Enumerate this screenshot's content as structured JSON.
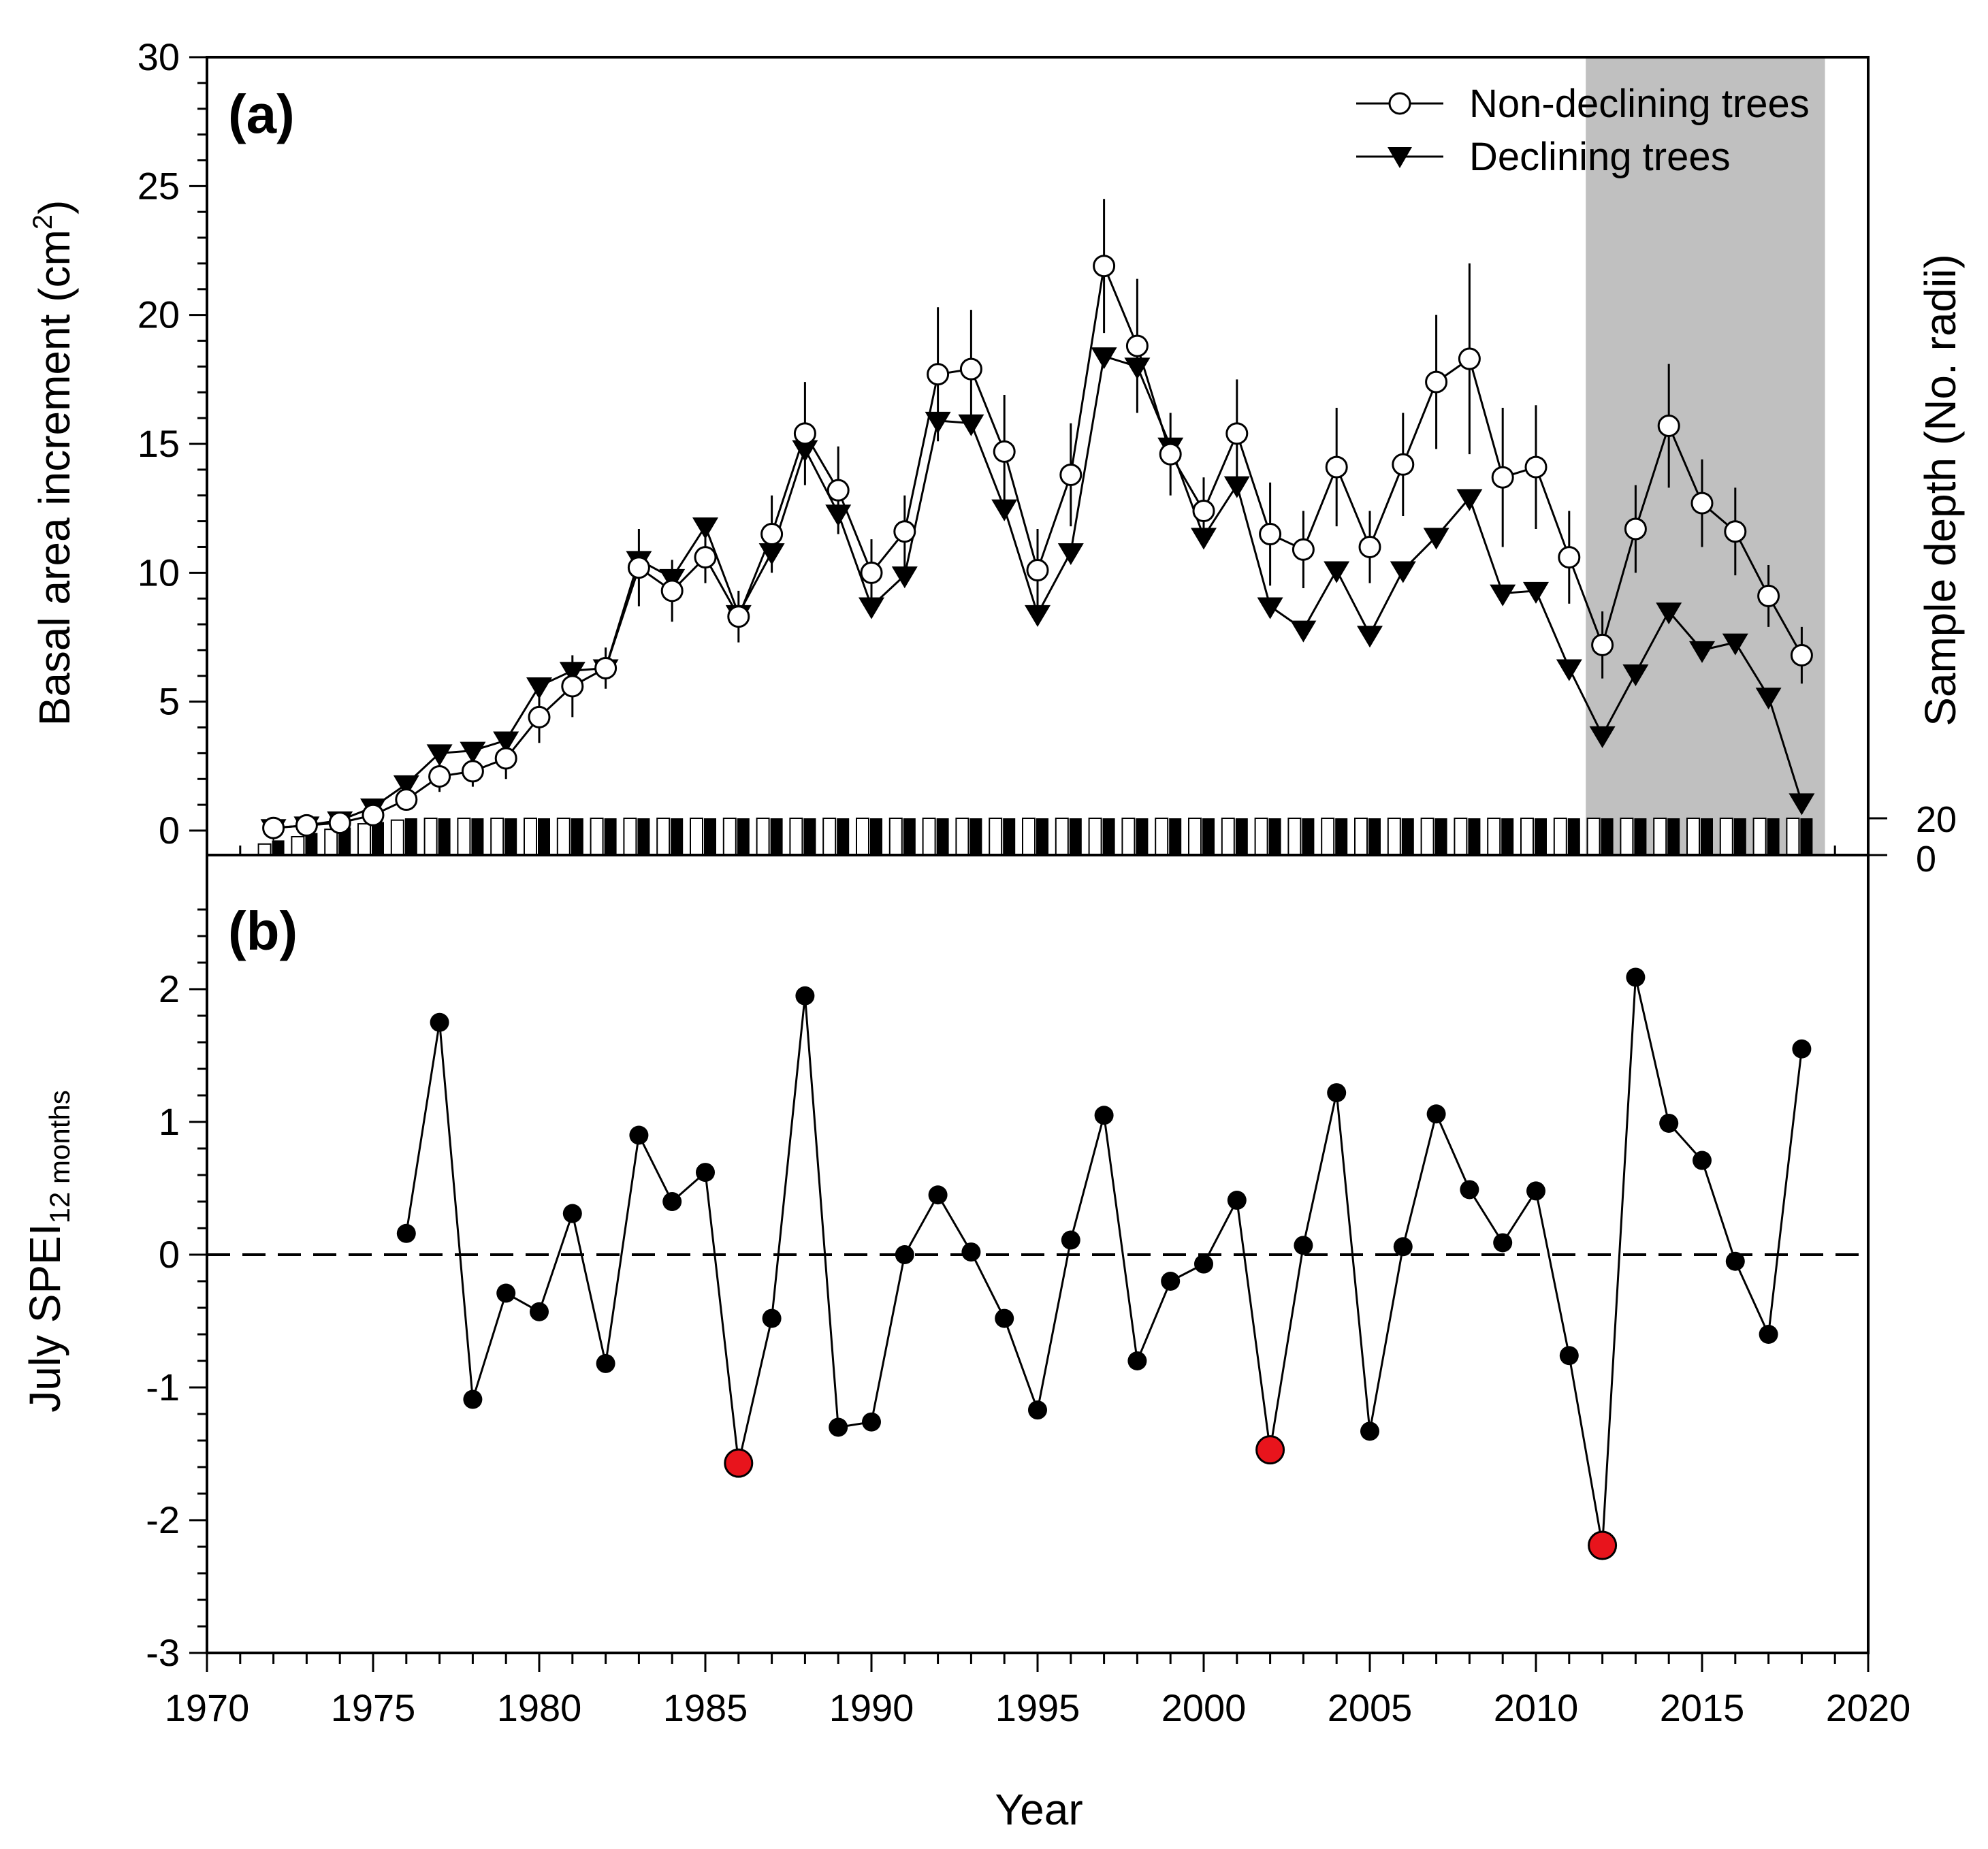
{
  "chart_data": [
    {
      "panel": "(a)",
      "type": "line",
      "ylabel": "Basal area increment (cm",
      "ylabel_superscript": "2",
      "ylabel_close": ")",
      "y2label": "Sample depth (No. radii)",
      "ylim": [
        0,
        30
      ],
      "yticks": [
        "0",
        "5",
        "10",
        "15",
        "20",
        "25",
        "30"
      ],
      "y2ticks": [
        "0",
        "20"
      ],
      "xlim": [
        1970,
        2020
      ],
      "shaded_region": [
        2011.5,
        2018.7
      ],
      "legend_position": "top-right",
      "series": [
        {
          "name": "Non-declining trees",
          "marker": "open-circle",
          "x": [
            1972,
            1973,
            1974,
            1975,
            1976,
            1977,
            1978,
            1979,
            1980,
            1981,
            1982,
            1983,
            1984,
            1985,
            1986,
            1987,
            1988,
            1989,
            1990,
            1991,
            1992,
            1993,
            1994,
            1995,
            1996,
            1997,
            1998,
            1999,
            2000,
            2001,
            2002,
            2003,
            2004,
            2005,
            2006,
            2007,
            2008,
            2009,
            2010,
            2011,
            2012,
            2013,
            2014,
            2015,
            2016,
            2017,
            2018
          ],
          "values": [
            0.1,
            0.2,
            0.3,
            0.6,
            1.2,
            2.1,
            2.3,
            2.8,
            4.4,
            5.6,
            6.3,
            10.2,
            9.3,
            10.6,
            8.3,
            11.5,
            15.4,
            13.2,
            10.0,
            11.6,
            17.7,
            17.9,
            14.7,
            10.1,
            13.8,
            21.9,
            18.8,
            14.6,
            12.4,
            15.4,
            11.5,
            10.9,
            14.1,
            11.0,
            14.2,
            17.4,
            18.3,
            13.7,
            14.1,
            10.6,
            7.2,
            11.7,
            15.7,
            12.7,
            11.6,
            9.1,
            6.8
          ],
          "errors": [
            0.2,
            0.2,
            0.2,
            0.3,
            0.4,
            0.6,
            0.6,
            0.8,
            1.0,
            1.2,
            0.8,
            1.5,
            1.2,
            1.0,
            1.0,
            1.5,
            2.0,
            1.7,
            1.3,
            1.4,
            2.6,
            2.3,
            2.2,
            1.6,
            2.0,
            2.6,
            2.6,
            1.6,
            1.3,
            2.1,
            2.0,
            1.5,
            2.3,
            1.4,
            2.0,
            2.6,
            3.7,
            2.7,
            2.4,
            1.8,
            1.3,
            1.7,
            2.4,
            1.7,
            1.7,
            1.2,
            1.1
          ]
        },
        {
          "name": "Declining trees",
          "marker": "filled-triangle-down",
          "x": [
            1972,
            1973,
            1974,
            1975,
            1976,
            1977,
            1978,
            1979,
            1980,
            1981,
            1982,
            1983,
            1984,
            1985,
            1986,
            1987,
            1988,
            1989,
            1990,
            1991,
            1992,
            1993,
            1994,
            1995,
            1996,
            1997,
            1998,
            1999,
            2000,
            2001,
            2002,
            2003,
            2004,
            2005,
            2006,
            2007,
            2008,
            2009,
            2010,
            2011,
            2012,
            2013,
            2014,
            2015,
            2016,
            2017,
            2018
          ],
          "values": [
            0.1,
            0.2,
            0.4,
            0.9,
            1.8,
            3.0,
            3.1,
            3.5,
            5.6,
            6.2,
            6.3,
            10.5,
            9.8,
            11.8,
            8.4,
            10.8,
            14.8,
            12.3,
            8.7,
            9.9,
            15.9,
            15.8,
            12.5,
            8.4,
            10.8,
            18.4,
            18.0,
            14.9,
            11.4,
            13.4,
            8.7,
            7.8,
            10.1,
            7.6,
            10.1,
            11.4,
            12.9,
            9.2,
            9.3,
            6.3,
            3.7,
            6.1,
            8.5,
            7.0,
            7.3,
            5.2,
            1.1
          ]
        }
      ],
      "sample_depth": {
        "x": [
          1972,
          1973,
          1974,
          1975,
          1976,
          1977,
          1978,
          1979,
          1980,
          1981,
          1982,
          1983,
          1984,
          1985,
          1986,
          1987,
          1988,
          1989,
          1990,
          1991,
          1992,
          1993,
          1994,
          1995,
          1996,
          1997,
          1998,
          1999,
          2000,
          2001,
          2002,
          2003,
          2004,
          2005,
          2006,
          2007,
          2008,
          2009,
          2010,
          2011,
          2012,
          2013,
          2014,
          2015,
          2016,
          2017,
          2018
        ],
        "non_declining": [
          6,
          10,
          14,
          17,
          19,
          20,
          20,
          20,
          20,
          20,
          20,
          20,
          20,
          20,
          20,
          20,
          20,
          20,
          20,
          20,
          20,
          20,
          20,
          20,
          20,
          20,
          20,
          20,
          20,
          20,
          20,
          20,
          20,
          20,
          20,
          20,
          20,
          20,
          20,
          20,
          20,
          20,
          20,
          20,
          20,
          20,
          20
        ],
        "declining": [
          8,
          12,
          15,
          18,
          20,
          20,
          20,
          20,
          20,
          20,
          20,
          20,
          20,
          20,
          20,
          20,
          20,
          20,
          20,
          20,
          20,
          20,
          20,
          20,
          20,
          20,
          20,
          20,
          20,
          20,
          20,
          20,
          20,
          20,
          20,
          20,
          20,
          20,
          20,
          20,
          20,
          20,
          20,
          20,
          20,
          20,
          20
        ]
      }
    },
    {
      "panel": "(b)",
      "type": "line",
      "ylabel": "July SPEI",
      "ylabel_subscript": "12 months",
      "xlabel": "Year",
      "ylim": [
        -3,
        2.8
      ],
      "yticks": [
        "-3",
        "-2",
        "-1",
        "0",
        "1",
        "2"
      ],
      "xlim": [
        1970,
        2020
      ],
      "xticks": [
        "1970",
        "1975",
        "1980",
        "1985",
        "1990",
        "1995",
        "2000",
        "2005",
        "2010",
        "2015",
        "2020"
      ],
      "reference_line": 0,
      "series": [
        {
          "name": "July SPEI",
          "x": [
            1976,
            1977,
            1978,
            1979,
            1980,
            1981,
            1982,
            1983,
            1984,
            1985,
            1986,
            1987,
            1988,
            1989,
            1990,
            1991,
            1992,
            1993,
            1994,
            1995,
            1996,
            1997,
            1998,
            1999,
            2000,
            2001,
            2002,
            2003,
            2004,
            2005,
            2006,
            2007,
            2008,
            2009,
            2010,
            2011,
            2012,
            2013,
            2014,
            2015,
            2016,
            2017,
            2018
          ],
          "values": [
            0.16,
            1.75,
            -1.09,
            -0.29,
            -0.43,
            0.31,
            -0.82,
            0.9,
            0.4,
            0.62,
            -1.57,
            -0.48,
            1.95,
            -1.3,
            -1.26,
            0.0,
            0.45,
            0.02,
            -0.48,
            -1.17,
            0.11,
            1.05,
            -0.8,
            -0.2,
            -0.07,
            0.41,
            -1.47,
            0.07,
            1.22,
            -1.33,
            0.06,
            1.06,
            0.49,
            0.09,
            0.48,
            -0.76,
            -2.19,
            2.09,
            0.99,
            0.71,
            -0.05,
            -0.6,
            1.55
          ]
        }
      ],
      "highlighted_years": [
        1986,
        2002,
        2012
      ],
      "highlight_color": "#e8141c"
    }
  ],
  "colors": {
    "shade": "#c0c0c0",
    "line": "#000000",
    "highlight": "#e8141c"
  }
}
